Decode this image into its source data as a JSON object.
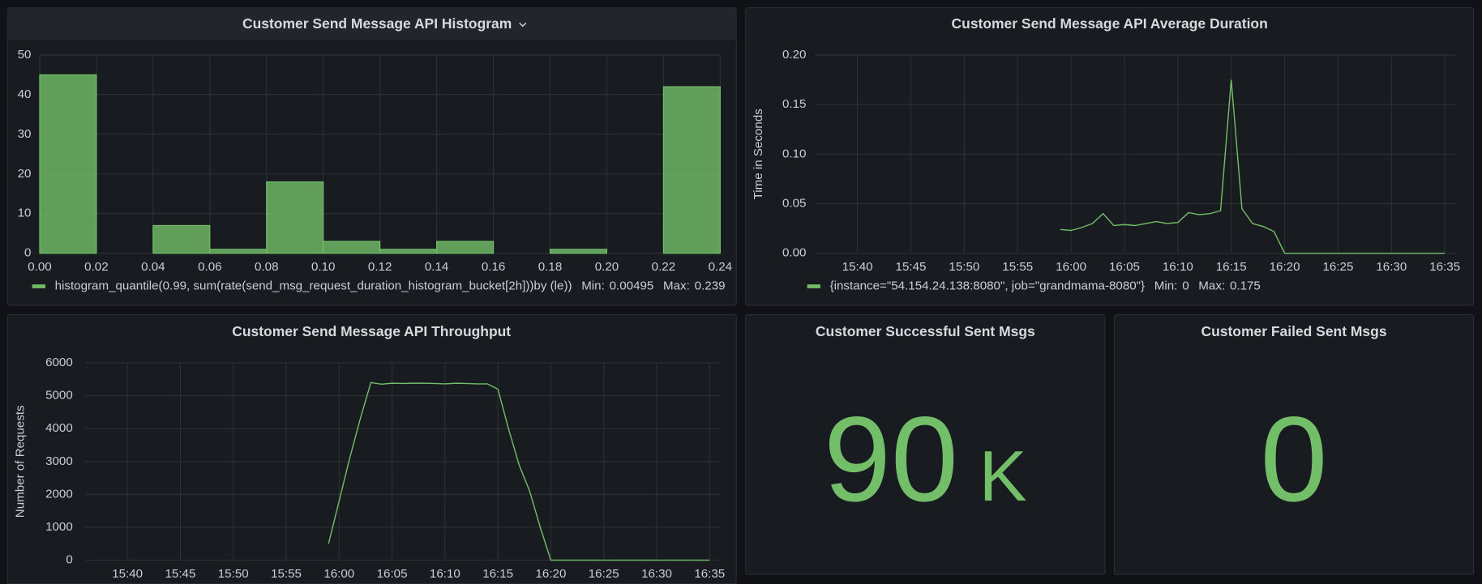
{
  "chart_data": [
    {
      "type": "histogram",
      "title": "Customer Send Message API Histogram",
      "bins": [
        0,
        0.02,
        0.04,
        0.06,
        0.08,
        0.1,
        0.12,
        0.14,
        0.16,
        0.18,
        0.2,
        0.22,
        0.24
      ],
      "series": [
        {
          "name": "histogram_quantile(0.99, sum(rate(send_msg_request_duration_histogram_bucket[2h]))by (le))",
          "color": "#73bf69",
          "values": [
            45,
            0,
            7,
            1,
            18,
            3,
            1,
            3,
            0,
            1,
            0,
            42
          ]
        }
      ],
      "legend_stats": [
        {
          "label": "Min:",
          "value": 0.00495
        },
        {
          "label": "Max:",
          "value": 0.239
        }
      ],
      "xlim": [
        0,
        0.24
      ],
      "xticks": [
        {
          "value": 0,
          "label": "0.00"
        },
        0.02,
        0.04,
        0.06,
        0.08,
        {
          "value": 0.1,
          "label": "0.10"
        },
        0.12,
        0.14,
        0.16,
        0.18,
        {
          "value": 0.2,
          "label": "0.20"
        },
        0.22,
        0.24
      ],
      "ylim": [
        0,
        50
      ],
      "yticks": [
        0,
        10,
        20,
        30,
        40,
        50
      ],
      "grid": true
    },
    {
      "type": "line",
      "title": "Customer Send Message API Average Duration",
      "ylabel": "Time in Seconds",
      "x": [
        "15:59",
        "16:00",
        "16:01",
        "16:02",
        "16:03",
        "16:04",
        "16:05",
        "16:06",
        "16:07",
        "16:08",
        "16:09",
        "16:10",
        "16:11",
        "16:12",
        "16:13",
        "16:14",
        "16:15",
        "16:16",
        "16:17",
        "16:18",
        "16:19",
        "16:20",
        "16:21",
        "16:22",
        "16:23",
        "16:24",
        "16:25",
        "16:26",
        "16:27",
        "16:28",
        "16:29",
        "16:30",
        "16:31",
        "16:32",
        "16:33",
        "16:34",
        "16:35"
      ],
      "series": [
        {
          "name": "{instance=\"54.154.24.138:8080\", job=\"grandmama-8080\"}",
          "color": "#73bf69",
          "values": [
            0.024,
            0.023,
            0.026,
            0.03,
            0.04,
            0.028,
            0.029,
            0.028,
            0.03,
            0.032,
            0.03,
            0.031,
            0.041,
            0.039,
            0.04,
            0.043,
            0.175,
            0.045,
            0.03,
            0.027,
            0.022,
            0,
            0,
            0,
            0,
            0,
            0,
            0,
            0,
            0,
            0,
            0,
            0,
            0,
            0,
            0,
            0
          ]
        }
      ],
      "legend_stats": [
        {
          "label": "Min:",
          "value": 0
        },
        {
          "label": "Max:",
          "value": 0.175
        }
      ],
      "xlim": [
        "15:36",
        "16:36"
      ],
      "xticks": [
        "15:40",
        "15:45",
        "15:50",
        "15:55",
        "16:00",
        "16:05",
        "16:10",
        "16:15",
        "16:20",
        "16:25",
        "16:30",
        "16:35"
      ],
      "ylim": [
        0,
        0.2
      ],
      "yticks": [
        {
          "value": 0,
          "label": "0.00"
        },
        0.05,
        {
          "value": 0.1,
          "label": "0.10"
        },
        0.15,
        {
          "value": 0.2,
          "label": "0.20"
        }
      ],
      "grid": true
    },
    {
      "type": "line",
      "title": "Customer Send Message API Throughput",
      "ylabel": "Number of Requests",
      "x": [
        "15:59",
        "16:00",
        "16:01",
        "16:02",
        "16:03",
        "16:04",
        "16:05",
        "16:06",
        "16:07",
        "16:08",
        "16:09",
        "16:10",
        "16:11",
        "16:12",
        "16:13",
        "16:14",
        "16:15",
        "16:16",
        "16:17",
        "16:18",
        "16:19",
        "16:20",
        "16:21",
        "16:22",
        "16:23",
        "16:24",
        "16:25",
        "16:26",
        "16:27",
        "16:28",
        "16:29",
        "16:30",
        "16:31",
        "16:32",
        "16:33",
        "16:34",
        "16:35"
      ],
      "series": [
        {
          "color": "#73bf69",
          "values": [
            500,
            1800,
            3100,
            4300,
            5400,
            5350,
            5380,
            5370,
            5380,
            5380,
            5370,
            5360,
            5380,
            5370,
            5360,
            5360,
            5200,
            4000,
            2900,
            2100,
            1000,
            0,
            0,
            0,
            0,
            0,
            0,
            0,
            0,
            0,
            0,
            0,
            0,
            0,
            0,
            0,
            0
          ]
        }
      ],
      "xlim": [
        "15:36",
        "16:36"
      ],
      "xticks": [
        "15:40",
        "15:45",
        "15:50",
        "15:55",
        "16:00",
        "16:05",
        "16:10",
        "16:15",
        "16:20",
        "16:25",
        "16:30",
        "16:35"
      ],
      "ylim": [
        0,
        6000
      ],
      "yticks": [
        0,
        1000,
        2000,
        3000,
        4000,
        5000,
        6000
      ],
      "grid": true
    },
    {
      "type": "stat",
      "title": "Customer Successful Sent Msgs",
      "value": 90,
      "unit": "K",
      "color": "#73bf69"
    },
    {
      "type": "stat",
      "title": "Customer Failed Sent Msgs",
      "value": 0,
      "color": "#73bf69"
    }
  ]
}
